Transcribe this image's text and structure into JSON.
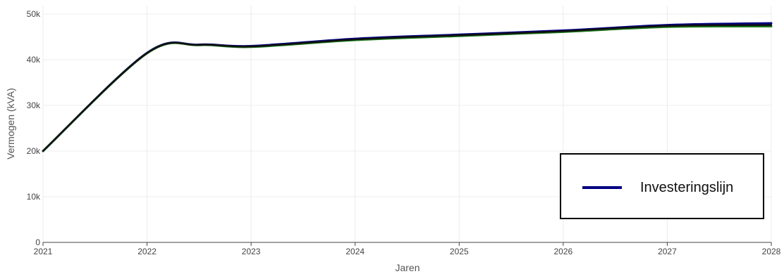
{
  "chart_data": {
    "type": "line",
    "xlabel": "Jaren",
    "ylabel": "Vermogen (kVA)",
    "xlim": [
      2021,
      2028
    ],
    "ylim": [
      0,
      50000
    ],
    "x_ticks": [
      "2021",
      "2022",
      "2023",
      "2024",
      "2025",
      "2026",
      "2027",
      "2028"
    ],
    "y_ticks": [
      "0",
      "10k",
      "20k",
      "30k",
      "40k",
      "50k"
    ],
    "grid": true,
    "legend_position": "bottom-right",
    "series": [
      {
        "name": "Investeringslijn",
        "color": "#000080",
        "x": [
          2021,
          2022,
          2022.5,
          2023,
          2024,
          2025,
          2026,
          2027,
          2028
        ],
        "y": [
          20000,
          41500,
          43300,
          43000,
          44600,
          45500,
          46400,
          47600,
          48000
        ]
      },
      {
        "name": "",
        "color": "#1a7a1a",
        "x": [
          2021,
          2022,
          2022.5,
          2023,
          2024,
          2025,
          2026,
          2027,
          2028
        ],
        "y": [
          20000,
          41400,
          43200,
          42800,
          44300,
          45200,
          46100,
          47200,
          47300
        ]
      },
      {
        "name": "",
        "color": "#111111",
        "x": [
          2021,
          2022,
          2022.5,
          2023,
          2024,
          2025,
          2026,
          2027,
          2028
        ],
        "y": [
          20000,
          41450,
          43250,
          42900,
          44450,
          45350,
          46250,
          47400,
          47600
        ]
      }
    ]
  },
  "legend": {
    "label": "Investeringslijn",
    "color": "#000080"
  }
}
